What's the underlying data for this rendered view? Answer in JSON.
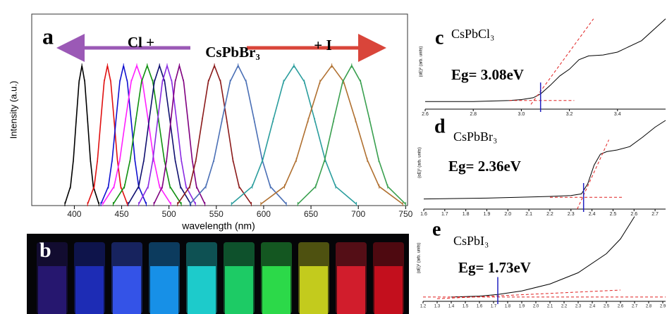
{
  "chart_data": [
    {
      "type": "line",
      "panel_label": "a",
      "annotations": [
        "Cl +",
        "CsPbBr₃",
        "+ I"
      ],
      "xlabel": "wavelength (nm)",
      "ylabel": "Intensity (a.u.)",
      "xlim": [
        355,
        752
      ],
      "ylim": [
        0,
        1.3
      ],
      "xticks": [
        400,
        450,
        500,
        550,
        600,
        650,
        700,
        750
      ],
      "series": [
        {
          "color": "#000000",
          "x": [
            390,
            396,
            399,
            402,
            405,
            408,
            411,
            414,
            417,
            420,
            426
          ],
          "values": [
            0.01,
            0.13,
            0.31,
            0.58,
            0.84,
            0.95,
            0.84,
            0.58,
            0.31,
            0.13,
            0.01
          ]
        },
        {
          "color": "#e01010",
          "x": [
            414,
            421,
            424.5,
            428,
            431.5,
            435,
            438.5,
            442,
            445.5,
            449,
            456
          ],
          "values": [
            0.01,
            0.13,
            0.31,
            0.58,
            0.84,
            0.95,
            0.84,
            0.58,
            0.31,
            0.13,
            0.01
          ]
        },
        {
          "color": "#1010d0",
          "x": [
            428,
            436,
            440,
            444,
            448,
            452,
            456,
            460,
            464,
            468,
            476
          ],
          "values": [
            0.01,
            0.13,
            0.31,
            0.58,
            0.84,
            0.95,
            0.84,
            0.58,
            0.31,
            0.13,
            0.01
          ]
        },
        {
          "color": "#ff20ff",
          "x": [
            430,
            442,
            448,
            454,
            460,
            466,
            472,
            478,
            484,
            490,
            502
          ],
          "values": [
            0.01,
            0.13,
            0.31,
            0.58,
            0.84,
            0.95,
            0.84,
            0.58,
            0.31,
            0.13,
            0.01
          ]
        },
        {
          "color": "#109010",
          "x": [
            441,
            453,
            459,
            465,
            471,
            477,
            483,
            489,
            495,
            501,
            513
          ],
          "values": [
            0.01,
            0.13,
            0.31,
            0.58,
            0.84,
            0.95,
            0.84,
            0.58,
            0.31,
            0.13,
            0.01
          ]
        },
        {
          "color": "#101070",
          "x": [
            457,
            468,
            473.5,
            479,
            484.5,
            490,
            495.5,
            501,
            506.5,
            512,
            523
          ],
          "values": [
            0.01,
            0.13,
            0.31,
            0.58,
            0.84,
            0.95,
            0.84,
            0.58,
            0.31,
            0.13,
            0.01
          ]
        },
        {
          "color": "#8a2be2",
          "x": [
            468,
            478,
            483,
            488,
            493,
            498,
            503,
            508,
            513,
            518,
            528
          ],
          "values": [
            0.01,
            0.13,
            0.31,
            0.58,
            0.84,
            0.95,
            0.84,
            0.58,
            0.31,
            0.13,
            0.01
          ]
        },
        {
          "color": "#800080",
          "x": [
            484,
            493,
            497.5,
            502,
            506.5,
            511,
            515.5,
            520,
            524.5,
            529,
            538
          ],
          "values": [
            0.01,
            0.13,
            0.31,
            0.58,
            0.84,
            0.95,
            0.84,
            0.58,
            0.31,
            0.13,
            0.01
          ]
        },
        {
          "color": "#8b1a1a",
          "x": [
            509,
            522,
            528.5,
            535,
            541.5,
            548,
            554.5,
            561,
            567.5,
            574,
            587
          ],
          "values": [
            0.01,
            0.13,
            0.31,
            0.58,
            0.84,
            0.95,
            0.84,
            0.58,
            0.31,
            0.13,
            0.01
          ]
        },
        {
          "color": "#4a6fb5",
          "x": [
            522,
            539,
            547.5,
            556,
            564.5,
            573,
            581.5,
            590,
            598.5,
            607,
            624
          ],
          "values": [
            0.01,
            0.13,
            0.31,
            0.58,
            0.84,
            0.95,
            0.84,
            0.58,
            0.31,
            0.13,
            0.01
          ]
        },
        {
          "color": "#2a9d9d",
          "x": [
            566,
            588,
            599,
            610,
            621,
            632,
            643,
            654,
            665,
            676,
            698
          ],
          "values": [
            0.01,
            0.13,
            0.31,
            0.58,
            0.84,
            0.95,
            0.84,
            0.58,
            0.31,
            0.13,
            0.01
          ]
        },
        {
          "color": "#b07030",
          "x": [
            597,
            622,
            634.5,
            647,
            659.5,
            672,
            684.5,
            697,
            709.5,
            722,
            747
          ],
          "values": [
            0.01,
            0.13,
            0.31,
            0.58,
            0.84,
            0.95,
            0.84,
            0.58,
            0.31,
            0.13,
            0.01
          ]
        },
        {
          "color": "#3aa050",
          "x": [
            636,
            655,
            664.5,
            674,
            683.5,
            693,
            702.5,
            712,
            721.5,
            731,
            750
          ],
          "values": [
            0.01,
            0.13,
            0.31,
            0.58,
            0.84,
            0.95,
            0.84,
            0.58,
            0.31,
            0.13,
            0.01
          ]
        }
      ]
    },
    {
      "type": "line",
      "panel_label": "c",
      "compound": "CsPbCl₃",
      "eg_label": "Eg= 3.08eV",
      "eg": 3.08,
      "ylabel": "(αE)² (arb. units)",
      "xlim": [
        2.6,
        3.6
      ],
      "ylim": [
        0,
        1
      ],
      "xticks": [
        2.6,
        2.8,
        {
          "value": 3,
          "label": "3.0"
        },
        3.2,
        3.4
      ],
      "series": [
        {
          "color": "#000000",
          "x": [
            2.6,
            2.8,
            2.95,
            3.0,
            3.05,
            3.08,
            3.12,
            3.16,
            3.2,
            3.24,
            3.28,
            3.34,
            3.4,
            3.5,
            3.6
          ],
          "values": [
            0.08,
            0.08,
            0.09,
            0.1,
            0.12,
            0.16,
            0.25,
            0.35,
            0.42,
            0.52,
            0.56,
            0.57,
            0.6,
            0.72,
            0.95
          ]
        },
        {
          "color": "#e02020",
          "dashed": true,
          "x": [
            3.04,
            3.3
          ],
          "values": [
            0.05,
            0.95
          ]
        },
        {
          "color": "#e02020",
          "dashed": true,
          "x": [
            2.95,
            3.22
          ],
          "values": [
            0.09,
            0.09
          ]
        }
      ]
    },
    {
      "type": "line",
      "panel_label": "d",
      "compound": "CsPbBr₃",
      "eg_label": "Eg= 2.36eV",
      "eg": 2.36,
      "ylabel": "(αE)² (arb. units)",
      "xlim": [
        1.6,
        2.75
      ],
      "ylim": [
        0,
        1.1
      ],
      "xticks": [
        1.6,
        1.7,
        1.8,
        1.9,
        {
          "value": 2,
          "label": "2.0"
        },
        2.1,
        2.2,
        2.3,
        2.4,
        2.5,
        2.6,
        2.7
      ],
      "series": [
        {
          "color": "#000000",
          "x": [
            1.6,
            1.9,
            2.2,
            2.3,
            2.35,
            2.38,
            2.41,
            2.44,
            2.47,
            2.52,
            2.58,
            2.64,
            2.7,
            2.75
          ],
          "values": [
            0.12,
            0.13,
            0.15,
            0.16,
            0.18,
            0.3,
            0.52,
            0.65,
            0.68,
            0.7,
            0.74,
            0.85,
            0.97,
            1.05
          ]
        },
        {
          "color": "#e02020",
          "dashed": true,
          "x": [
            2.33,
            2.48
          ],
          "values": [
            0.0,
            0.82
          ]
        },
        {
          "color": "#e02020",
          "dashed": true,
          "x": [
            2.2,
            2.55
          ],
          "values": [
            0.14,
            0.14
          ]
        }
      ]
    },
    {
      "type": "line",
      "panel_label": "e",
      "compound": "CsPbI₃",
      "eg_label": "Eg= 1.73eV",
      "eg": 1.73,
      "ylabel": "(αE)² (arb. units)",
      "xlim": [
        1.2,
        2.92
      ],
      "ylim": [
        0,
        1
      ],
      "xticks": [
        1.2,
        1.3,
        1.4,
        1.5,
        1.6,
        1.7,
        1.8,
        1.9,
        {
          "value": 2,
          "label": "2.0"
        },
        2.1,
        2.2,
        2.3,
        2.4,
        2.5,
        2.6,
        2.7,
        2.8,
        2.9
      ],
      "series": [
        {
          "color": "#000000",
          "x": [
            1.4,
            1.6,
            1.73,
            1.9,
            2.1,
            2.3,
            2.5,
            2.6,
            2.7
          ],
          "values": [
            0.05,
            0.06,
            0.08,
            0.12,
            0.2,
            0.33,
            0.55,
            0.72,
            0.98
          ]
        },
        {
          "color": "#e02020",
          "dashed": true,
          "x": [
            1.3,
            2.6
          ],
          "values": [
            0.03,
            0.13
          ]
        },
        {
          "color": "#e02020",
          "dashed": true,
          "x": [
            1.2,
            2.92
          ],
          "values": [
            0.05,
            0.05
          ]
        }
      ]
    }
  ],
  "photo": {
    "label": "b"
  }
}
